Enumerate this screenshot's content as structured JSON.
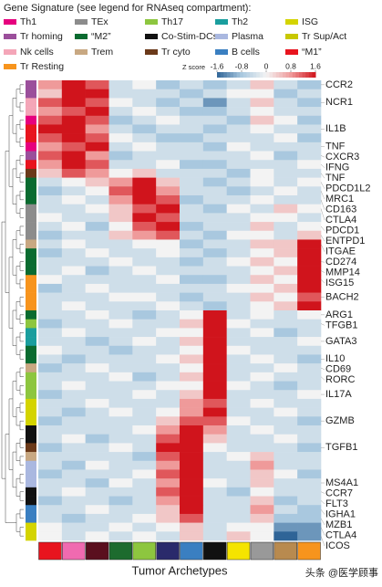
{
  "chart_data": {
    "type": "heatmap",
    "title": "Gene Signature (see legend for RNAseq compartment):",
    "legend": [
      {
        "name": "Th1",
        "color": "#e6007e"
      },
      {
        "name": "TEx",
        "color": "#8c8c8c"
      },
      {
        "name": "Th17",
        "color": "#8dc63f"
      },
      {
        "name": "Th2",
        "color": "#1a9e9e"
      },
      {
        "name": "ISG",
        "color": "#d4d400"
      },
      {
        "name": "Tr homing",
        "color": "#9b4f9b"
      },
      {
        "name": "“M2”",
        "color": "#0a6b30"
      },
      {
        "name": "Co-Stim-DCs",
        "color": "#111111"
      },
      {
        "name": "Plasma",
        "color": "#aab8e0"
      },
      {
        "name": "Tr Sup/Act",
        "color": "#c8c800"
      },
      {
        "name": "Nk cells",
        "color": "#f4a6b8"
      },
      {
        "name": "Trem",
        "color": "#c8a882"
      },
      {
        "name": "Tr cyto",
        "color": "#6b3a1a"
      },
      {
        "name": "B cells",
        "color": "#3a7fc1"
      },
      {
        "name": "“M1”",
        "color": "#e8141e"
      },
      {
        "name": "Tr Resting",
        "color": "#f7941d"
      }
    ],
    "colorbar_label": "Z score",
    "zlim": [
      -1.6,
      1.6
    ],
    "zticks": [
      -1.6,
      -0.8,
      0,
      0.8,
      1.6
    ],
    "colormap": [
      "#2f6497",
      "#a9c8df",
      "#f3f3f3",
      "#ef9a9a",
      "#d0141c"
    ],
    "x_label": "Tumor Archetypes",
    "column_colors": [
      "#e8141e",
      "#f06ab0",
      "#5a0f1e",
      "#1d6b2e",
      "#8dc63f",
      "#2a2a6b",
      "#3a7fc1",
      "#111111",
      "#f5e400",
      "#999999",
      "#b88a4f",
      "#f7941d"
    ],
    "categories": [
      "CCR2",
      null,
      "NCR1",
      null,
      null,
      "IL1B",
      null,
      "TNF",
      "CXCR3",
      "IFNG",
      "TNF",
      "PDCD1L2",
      "MRC1",
      "CD163",
      "CTLA4",
      null,
      "PDCD1",
      "ENTPD1",
      "ITGAE",
      null,
      "CD274",
      "MMP14",
      "ISG15",
      null,
      "BACH2",
      null,
      "ARG1",
      "TFGB1",
      null,
      "GATA3",
      null,
      "IL10",
      "CD69",
      "RORC",
      null,
      "IL17A",
      null,
      null,
      "GZMB",
      null,
      null,
      "TGFB1",
      null,
      null,
      null,
      "MS4A1",
      "CCR7",
      "FLT3",
      "IGHA1",
      "MZB1",
      "CTLA4",
      "ICOS"
    ],
    "category_colors": [
      "#9b4f9b",
      null,
      "#f4a6b8",
      null,
      null,
      "#e8141e",
      null,
      "#e6007e",
      "#9b4f9b",
      "#e6007e",
      "#3a2a1a",
      "#0a6b30",
      "#0a6b30",
      "#0a6b30",
      "#8c8c8c",
      null,
      "#8c8c8c",
      "#8c8c8c",
      "#c8a882",
      null,
      "#0a6b30",
      "#0a6b30",
      "#f7941d",
      null,
      "#f7941d",
      null,
      "#0a6b30",
      "#8dc63f",
      null,
      "#1a9e9e",
      null,
      "#0a6b30",
      "#c8a882",
      "#8dc63f",
      null,
      "#8dc63f",
      null,
      null,
      "#d4c400",
      null,
      null,
      "#333333",
      null,
      null,
      null,
      "#9aaee0",
      "#111111",
      "#111111",
      "#3a7fc1",
      "#3a7fc1",
      "#d4c400",
      "#d4c400"
    ],
    "row_colors": [
      "#9b4f9b",
      "#9b4f9b",
      "#f4a6b8",
      "#f4a6b8",
      "#e6007e",
      "#e8141e",
      "#e8141e",
      "#e6007e",
      "#9b4f9b",
      "#e8141e",
      "#6b3a1a",
      "#0a6b30",
      "#0a6b30",
      "#0a6b30",
      "#8c8c8c",
      "#8c8c8c",
      "#8c8c8c",
      "#8c8c8c",
      "#c8a882",
      "#0a6b30",
      "#0a6b30",
      "#0a6b30",
      "#f7941d",
      "#f7941d",
      "#f7941d",
      "#f7941d",
      "#0a6b30",
      "#8dc63f",
      "#1a9e9e",
      "#1a9e9e",
      "#0a6b30",
      "#0a6b30",
      "#c8a882",
      "#8dc63f",
      "#8dc63f",
      "#8dc63f",
      "#d4d400",
      "#d4d400",
      "#d4d400",
      "#111111",
      "#111111",
      "#6b3a1a",
      "#c8a882",
      "#aab8e0",
      "#aab8e0",
      "#aab8e0",
      "#111111",
      "#111111",
      "#3a7fc1",
      "#3a7fc1",
      "#d4d400",
      "#d4d400"
    ],
    "values": [
      [
        0.8,
        1.6,
        1.2,
        -0.4,
        0,
        -0.8,
        -0.4,
        -0.8,
        -0.4,
        0.4,
        -0.4,
        -0.8
      ],
      [
        0.4,
        1.6,
        1.6,
        -0.4,
        -0.4,
        -0.4,
        -0.8,
        -0.4,
        0,
        0,
        -0.8,
        -0.4
      ],
      [
        1.2,
        1.6,
        1.2,
        0,
        -0.4,
        -0.8,
        -0.4,
        -1.2,
        -0.4,
        0.4,
        -0.4,
        -0.8
      ],
      [
        0.8,
        1.2,
        1.6,
        -0.4,
        0,
        -0.4,
        -0.8,
        -0.8,
        -0.4,
        0,
        -0.4,
        -0.4
      ],
      [
        1.2,
        1.6,
        1.2,
        -0.8,
        -0.4,
        0,
        -0.4,
        -0.4,
        -0.8,
        0.4,
        0,
        -0.8
      ],
      [
        1.6,
        1.6,
        0.8,
        -0.4,
        -0.8,
        -0.4,
        -0.4,
        -0.8,
        -0.4,
        0,
        -0.4,
        -0.4
      ],
      [
        1.2,
        1.6,
        1.2,
        0,
        -0.4,
        -0.8,
        -0.8,
        -0.4,
        -0.4,
        -0.4,
        0,
        -0.8
      ],
      [
        0.8,
        1.2,
        1.6,
        -0.4,
        0,
        -0.4,
        -0.4,
        -0.8,
        0,
        -0.4,
        -0.4,
        -0.4
      ],
      [
        1.2,
        1.6,
        0.8,
        -0.8,
        -0.4,
        -0.4,
        -0.4,
        -0.4,
        -0.4,
        0,
        -0.8,
        -0.4
      ],
      [
        0.8,
        1.6,
        1.2,
        -0.4,
        -0.4,
        0,
        -0.8,
        -0.8,
        -0.4,
        -0.4,
        -0.4,
        0
      ],
      [
        0.4,
        1.2,
        0.8,
        0,
        0.4,
        -0.4,
        -0.4,
        -0.4,
        -0.8,
        0,
        -0.4,
        -0.4
      ],
      [
        -0.4,
        0,
        0.4,
        0.8,
        1.6,
        0.4,
        -0.4,
        -0.8,
        -0.4,
        0,
        -0.4,
        0
      ],
      [
        -0.8,
        -0.4,
        0,
        1.2,
        1.6,
        0.8,
        -0.4,
        -0.4,
        -0.8,
        -0.4,
        0,
        -0.4
      ],
      [
        -0.4,
        0,
        -0.4,
        0.8,
        1.6,
        1.2,
        -0.8,
        -0.4,
        -0.4,
        0,
        -0.4,
        -0.4
      ],
      [
        -0.4,
        -0.4,
        0,
        0.4,
        1.2,
        1.6,
        -0.4,
        -0.8,
        0,
        -0.4,
        0.4,
        0
      ],
      [
        0,
        -0.4,
        -0.4,
        0.4,
        1.6,
        1.2,
        -0.4,
        -0.4,
        -0.4,
        0,
        0,
        -0.4
      ],
      [
        -0.4,
        0,
        -0.8,
        0,
        1.2,
        1.6,
        -0.8,
        -0.4,
        -0.4,
        0.4,
        -0.4,
        0
      ],
      [
        -0.8,
        -0.4,
        -0.4,
        0.4,
        0.8,
        1.2,
        -0.4,
        -0.8,
        0,
        0,
        -0.4,
        0.4
      ],
      [
        -0.4,
        0,
        -0.4,
        -0.4,
        0,
        0,
        -0.8,
        -0.4,
        -0.4,
        0.4,
        0.4,
        1.6
      ],
      [
        -0.8,
        -0.4,
        0,
        -0.4,
        -0.4,
        0,
        -0.4,
        -0.8,
        -0.4,
        0,
        0.4,
        1.6
      ],
      [
        -0.4,
        -0.4,
        -0.4,
        0,
        -0.4,
        -0.4,
        -0.8,
        -0.4,
        0,
        0.4,
        0,
        1.6
      ],
      [
        -0.4,
        0,
        -0.8,
        -0.4,
        0,
        -0.4,
        -0.4,
        -0.4,
        -0.4,
        0,
        0.4,
        1.6
      ],
      [
        0,
        -0.4,
        -0.4,
        -0.4,
        -0.4,
        0,
        -0.8,
        -0.8,
        -0.4,
        0.4,
        0,
        1.6
      ],
      [
        -0.8,
        -0.4,
        0,
        -0.4,
        -0.4,
        -0.4,
        -0.4,
        -0.4,
        0,
        0,
        0.4,
        1.6
      ],
      [
        -0.4,
        -0.4,
        -0.4,
        0,
        0,
        -0.4,
        -0.8,
        -0.4,
        -0.4,
        0.4,
        0,
        1.2
      ],
      [
        -0.4,
        0,
        -0.4,
        -0.4,
        -0.4,
        0,
        -0.4,
        -0.8,
        -0.4,
        0,
        0.4,
        1.6
      ],
      [
        -0.4,
        -0.4,
        0,
        -0.4,
        -0.8,
        -0.4,
        0,
        1.6,
        -0.4,
        0,
        -0.4,
        0
      ],
      [
        -0.8,
        -0.4,
        -0.4,
        0,
        -0.4,
        -0.4,
        0.4,
        1.6,
        0,
        -0.4,
        -0.4,
        -0.4
      ],
      [
        -0.4,
        0,
        -0.4,
        -0.4,
        -0.4,
        0,
        0,
        1.6,
        -0.4,
        0,
        -0.8,
        -0.4
      ],
      [
        -0.4,
        -0.4,
        -0.8,
        -0.4,
        0,
        -0.4,
        0.4,
        1.6,
        -0.4,
        -0.4,
        -0.4,
        0
      ],
      [
        0,
        -0.4,
        -0.4,
        -0.8,
        -0.4,
        -0.4,
        0,
        1.6,
        0,
        -0.4,
        -0.4,
        -0.4
      ],
      [
        -0.4,
        -0.8,
        -0.4,
        -0.4,
        -0.4,
        0,
        0.4,
        1.6,
        -0.4,
        0,
        -0.4,
        -0.8
      ],
      [
        -0.8,
        -0.4,
        0,
        -0.4,
        -0.4,
        -0.4,
        0,
        1.6,
        -0.4,
        -0.4,
        0,
        -0.4
      ],
      [
        -0.4,
        -0.4,
        -0.4,
        0,
        -0.8,
        -0.4,
        0.4,
        1.6,
        -0.4,
        0,
        -0.4,
        -0.4
      ],
      [
        -0.4,
        0,
        -0.4,
        -0.4,
        -0.4,
        0,
        0,
        1.6,
        0,
        -0.4,
        -0.8,
        -0.4
      ],
      [
        -0.8,
        -0.4,
        -0.4,
        -0.4,
        0,
        -0.4,
        0.4,
        1.6,
        -0.4,
        -0.4,
        -0.4,
        0
      ],
      [
        -0.4,
        -0.4,
        0,
        -0.4,
        -0.4,
        -0.4,
        0.8,
        1.2,
        -0.4,
        0,
        -0.4,
        -0.4
      ],
      [
        -0.4,
        -0.8,
        -0.4,
        0,
        -0.4,
        0,
        0.8,
        1.6,
        -0.4,
        -0.4,
        0,
        -0.4
      ],
      [
        -0.8,
        -0.4,
        -0.4,
        -0.4,
        -0.4,
        0.4,
        1.2,
        1.2,
        0,
        -0.4,
        -0.4,
        -0.8
      ],
      [
        -0.4,
        -0.4,
        -0.4,
        -0.4,
        0,
        0.8,
        1.6,
        0.8,
        -0.4,
        0,
        -0.4,
        -0.4
      ],
      [
        -0.4,
        0,
        -0.8,
        -0.4,
        -0.4,
        1.2,
        1.6,
        0.4,
        -0.4,
        -0.4,
        0,
        -0.4
      ],
      [
        -0.8,
        -0.4,
        -0.4,
        0,
        -0.4,
        1.6,
        1.6,
        0,
        -0.4,
        -0.4,
        -0.4,
        -0.8
      ],
      [
        -0.4,
        -0.4,
        -0.4,
        -0.4,
        -0.8,
        1.2,
        1.6,
        -0.4,
        0,
        0.4,
        -0.4,
        -0.4
      ],
      [
        -0.4,
        -0.8,
        0,
        -0.4,
        -0.4,
        0.8,
        1.6,
        -0.4,
        -0.4,
        0.8,
        -0.4,
        -0.4
      ],
      [
        -0.8,
        -0.4,
        -0.4,
        -0.4,
        0,
        1.2,
        1.6,
        -0.4,
        -0.4,
        0.4,
        0,
        -0.8
      ],
      [
        -0.4,
        -0.4,
        -0.8,
        0,
        -0.4,
        0.8,
        1.6,
        0,
        -0.4,
        0.4,
        -0.4,
        -0.4
      ],
      [
        -0.4,
        0,
        -0.4,
        -0.4,
        -0.4,
        1.2,
        1.6,
        -0.4,
        -0.8,
        0,
        -0.4,
        -0.4
      ],
      [
        -0.8,
        -0.4,
        -0.4,
        -0.8,
        -0.4,
        0.8,
        1.6,
        -0.4,
        -0.4,
        0.4,
        -0.8,
        -0.4
      ],
      [
        -0.4,
        -0.4,
        0,
        -0.4,
        -0.4,
        0.4,
        1.6,
        -0.4,
        -0.4,
        0.8,
        -0.4,
        -0.8
      ],
      [
        -0.4,
        -0.8,
        -0.4,
        -0.4,
        0,
        0.4,
        1.2,
        -0.4,
        -0.4,
        0.4,
        -0.8,
        -0.8
      ],
      [
        0,
        -0.4,
        -0.4,
        0,
        -0.4,
        0,
        0.4,
        -0.4,
        0,
        0,
        -1.2,
        -1.2
      ],
      [
        0,
        -0.4,
        0,
        -0.4,
        0,
        -0.4,
        0.4,
        -0.4,
        0.4,
        0,
        -1.6,
        -1.2
      ]
    ],
    "watermark": "头条 @医学顾事"
  }
}
